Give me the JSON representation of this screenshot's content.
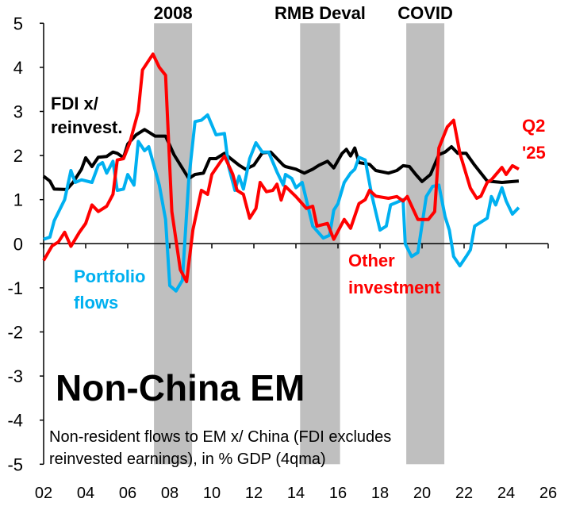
{
  "chart_data": {
    "type": "line",
    "title": "Non-China EM",
    "note_lines": [
      "Non-resident flows to EM x/ China (FDI excludes",
      "reinvested earnings), in % GDP (4qma)"
    ],
    "xlim": [
      2002,
      2026
    ],
    "ylim": [
      -5,
      5
    ],
    "x_ticks": [
      "02",
      "04",
      "06",
      "08",
      "10",
      "12",
      "14",
      "16",
      "18",
      "20",
      "22",
      "24",
      "26"
    ],
    "y_ticks": [
      "5",
      "4",
      "3",
      "2",
      "1",
      "0",
      "-1",
      "-2",
      "-3",
      "-4",
      "-5"
    ],
    "grid": false,
    "shaded_periods": [
      {
        "label": "2008",
        "start": 2007.25,
        "end": 2009.06
      },
      {
        "label": "RMB Deval",
        "start": 2014.2,
        "end": 2016.1
      },
      {
        "label": "COVID",
        "start": 2019.25,
        "end": 2021.06
      }
    ],
    "end_label": [
      "Q2",
      "'25"
    ],
    "series": [
      {
        "name": "FDI x/ reinvest.",
        "label_lines": [
          "FDI x/",
          "reinvest."
        ],
        "color": "#000000",
        "points": [
          [
            2002.0,
            1.53
          ],
          [
            2002.3,
            1.42
          ],
          [
            2002.5,
            1.24
          ],
          [
            2003.1,
            1.23
          ],
          [
            2003.4,
            1.39
          ],
          [
            2003.8,
            1.69
          ],
          [
            2004.0,
            1.95
          ],
          [
            2004.3,
            1.75
          ],
          [
            2004.6,
            1.96
          ],
          [
            2005.0,
            1.98
          ],
          [
            2005.3,
            2.08
          ],
          [
            2005.5,
            2.05
          ],
          [
            2005.8,
            1.95
          ],
          [
            2006.0,
            2.26
          ],
          [
            2006.4,
            2.47
          ],
          [
            2006.8,
            2.59
          ],
          [
            2007.0,
            2.53
          ],
          [
            2007.3,
            2.44
          ],
          [
            2007.8,
            2.44
          ],
          [
            2008.2,
            2.02
          ],
          [
            2008.9,
            1.48
          ],
          [
            2009.2,
            1.57
          ],
          [
            2009.6,
            1.6
          ],
          [
            2009.9,
            1.93
          ],
          [
            2010.2,
            1.93
          ],
          [
            2010.6,
            2.05
          ],
          [
            2010.9,
            1.93
          ],
          [
            2011.3,
            1.78
          ],
          [
            2011.6,
            1.69
          ],
          [
            2012.0,
            1.78
          ],
          [
            2012.4,
            2.06
          ],
          [
            2012.8,
            2.08
          ],
          [
            2013.4,
            1.78
          ],
          [
            2013.5,
            1.75
          ],
          [
            2014.0,
            1.69
          ],
          [
            2014.4,
            1.6
          ],
          [
            2014.8,
            1.69
          ],
          [
            2015.1,
            1.78
          ],
          [
            2015.5,
            1.87
          ],
          [
            2015.8,
            1.72
          ],
          [
            2016.2,
            2.05
          ],
          [
            2016.4,
            2.14
          ],
          [
            2016.6,
            1.99
          ],
          [
            2016.8,
            2.17
          ],
          [
            2017.0,
            1.84
          ],
          [
            2017.5,
            1.8
          ],
          [
            2017.8,
            1.66
          ],
          [
            2018.4,
            1.6
          ],
          [
            2018.8,
            1.66
          ],
          [
            2019.1,
            1.77
          ],
          [
            2019.4,
            1.75
          ],
          [
            2019.7,
            1.57
          ],
          [
            2020.0,
            1.41
          ],
          [
            2020.4,
            1.57
          ],
          [
            2020.8,
            2.02
          ],
          [
            2021.1,
            2.08
          ],
          [
            2021.4,
            2.2
          ],
          [
            2021.7,
            2.05
          ],
          [
            2022.1,
            2.05
          ],
          [
            2022.5,
            1.78
          ],
          [
            2023.1,
            1.42
          ],
          [
            2023.8,
            1.39
          ],
          [
            2024.6,
            1.42
          ]
        ]
      },
      {
        "name": "Portfolio flows",
        "label_lines": [
          "Portfolio",
          "flows"
        ],
        "color": "#00b0f0",
        "points": [
          [
            2002.0,
            0.1
          ],
          [
            2002.3,
            0.15
          ],
          [
            2002.5,
            0.52
          ],
          [
            2003.0,
            1.0
          ],
          [
            2003.3,
            1.66
          ],
          [
            2003.5,
            1.39
          ],
          [
            2003.8,
            1.45
          ],
          [
            2004.3,
            1.39
          ],
          [
            2004.6,
            1.78
          ],
          [
            2004.8,
            1.84
          ],
          [
            2005.0,
            1.6
          ],
          [
            2005.3,
            1.87
          ],
          [
            2005.5,
            1.21
          ],
          [
            2005.8,
            1.24
          ],
          [
            2006.0,
            1.57
          ],
          [
            2006.3,
            1.33
          ],
          [
            2006.5,
            2.32
          ],
          [
            2006.8,
            2.11
          ],
          [
            2007.0,
            2.2
          ],
          [
            2007.5,
            1.33
          ],
          [
            2007.8,
            0.55
          ],
          [
            2008.0,
            -0.95
          ],
          [
            2008.3,
            -1.07
          ],
          [
            2008.6,
            -0.83
          ],
          [
            2008.9,
            1.45
          ],
          [
            2009.2,
            2.77
          ],
          [
            2009.5,
            2.8
          ],
          [
            2009.8,
            2.92
          ],
          [
            2010.2,
            2.47
          ],
          [
            2010.6,
            2.5
          ],
          [
            2010.8,
            1.75
          ],
          [
            2011.1,
            1.21
          ],
          [
            2011.3,
            1.53
          ],
          [
            2011.5,
            1.24
          ],
          [
            2011.8,
            1.93
          ],
          [
            2012.1,
            2.29
          ],
          [
            2012.4,
            2.08
          ],
          [
            2012.7,
            2.08
          ],
          [
            2013.1,
            1.63
          ],
          [
            2013.4,
            1.33
          ],
          [
            2013.5,
            1.57
          ],
          [
            2013.8,
            1.48
          ],
          [
            2014.0,
            1.27
          ],
          [
            2014.3,
            1.39
          ],
          [
            2014.8,
            0.4
          ],
          [
            2015.3,
            0.13
          ],
          [
            2015.6,
            0.19
          ],
          [
            2015.8,
            0.76
          ],
          [
            2016.0,
            0.91
          ],
          [
            2016.3,
            1.39
          ],
          [
            2016.6,
            1.6
          ],
          [
            2016.8,
            1.69
          ],
          [
            2017.0,
            1.96
          ],
          [
            2017.3,
            1.9
          ],
          [
            2017.6,
            1.12
          ],
          [
            2018.0,
            0.31
          ],
          [
            2018.3,
            0.4
          ],
          [
            2018.5,
            0.88
          ],
          [
            2019.1,
            1.0
          ],
          [
            2019.2,
            0.0
          ],
          [
            2019.5,
            -0.29
          ],
          [
            2019.8,
            -0.2
          ],
          [
            2020.2,
            1.07
          ],
          [
            2020.5,
            1.3
          ],
          [
            2020.8,
            1.33
          ],
          [
            2021.1,
            0.61
          ],
          [
            2021.3,
            0.31
          ],
          [
            2021.5,
            -0.29
          ],
          [
            2021.8,
            -0.5
          ],
          [
            2022.1,
            -0.29
          ],
          [
            2022.3,
            -0.14
          ],
          [
            2022.5,
            0.4
          ],
          [
            2022.8,
            0.49
          ],
          [
            2023.1,
            0.58
          ],
          [
            2023.3,
            1.07
          ],
          [
            2023.5,
            0.88
          ],
          [
            2023.8,
            1.27
          ],
          [
            2024.0,
            0.97
          ],
          [
            2024.3,
            0.67
          ],
          [
            2024.6,
            0.82
          ]
        ]
      },
      {
        "name": "Other investment",
        "label_lines": [
          "Other",
          "investment"
        ],
        "color": "#ff0000",
        "points": [
          [
            2002.0,
            -0.38
          ],
          [
            2002.4,
            -0.05
          ],
          [
            2002.7,
            0.04
          ],
          [
            2003.0,
            0.26
          ],
          [
            2003.3,
            -0.06
          ],
          [
            2003.7,
            0.26
          ],
          [
            2004.0,
            0.46
          ],
          [
            2004.3,
            0.88
          ],
          [
            2004.6,
            0.73
          ],
          [
            2005.0,
            0.85
          ],
          [
            2005.3,
            1.12
          ],
          [
            2005.5,
            1.9
          ],
          [
            2005.8,
            1.93
          ],
          [
            2006.1,
            2.29
          ],
          [
            2006.5,
            3.0
          ],
          [
            2006.7,
            3.94
          ],
          [
            2007.2,
            4.3
          ],
          [
            2007.5,
            4.0
          ],
          [
            2007.8,
            3.82
          ],
          [
            2008.1,
            0.73
          ],
          [
            2008.5,
            -0.59
          ],
          [
            2008.8,
            -0.86
          ],
          [
            2009.1,
            0.31
          ],
          [
            2009.5,
            1.21
          ],
          [
            2009.8,
            1.12
          ],
          [
            2010.0,
            1.57
          ],
          [
            2010.6,
            1.99
          ],
          [
            2011.0,
            1.57
          ],
          [
            2011.2,
            1.21
          ],
          [
            2011.5,
            1.12
          ],
          [
            2011.8,
            0.58
          ],
          [
            2012.1,
            0.8
          ],
          [
            2012.3,
            1.39
          ],
          [
            2012.6,
            1.18
          ],
          [
            2012.9,
            1.21
          ],
          [
            2013.1,
            1.35
          ],
          [
            2013.3,
            0.99
          ],
          [
            2013.5,
            1.3
          ],
          [
            2014.0,
            1.07
          ],
          [
            2014.5,
            0.8
          ],
          [
            2014.8,
            0.85
          ],
          [
            2015.0,
            0.4
          ],
          [
            2015.5,
            0.46
          ],
          [
            2015.8,
            0.1
          ],
          [
            2016.3,
            0.55
          ],
          [
            2016.6,
            0.35
          ],
          [
            2017.0,
            0.91
          ],
          [
            2017.3,
            1.0
          ],
          [
            2017.5,
            1.21
          ],
          [
            2017.8,
            1.08
          ],
          [
            2018.4,
            1.03
          ],
          [
            2018.8,
            1.07
          ],
          [
            2019.1,
            0.97
          ],
          [
            2019.3,
            1.07
          ],
          [
            2019.8,
            0.55
          ],
          [
            2020.3,
            0.55
          ],
          [
            2020.6,
            0.73
          ],
          [
            2020.8,
            2.17
          ],
          [
            2021.2,
            2.65
          ],
          [
            2021.5,
            2.8
          ],
          [
            2021.8,
            2.05
          ],
          [
            2022.3,
            1.26
          ],
          [
            2022.6,
            1.03
          ],
          [
            2022.8,
            1.08
          ],
          [
            2023.1,
            1.39
          ],
          [
            2023.3,
            1.45
          ],
          [
            2023.8,
            1.73
          ],
          [
            2024.0,
            1.57
          ],
          [
            2024.3,
            1.77
          ],
          [
            2024.6,
            1.69
          ]
        ]
      }
    ]
  }
}
